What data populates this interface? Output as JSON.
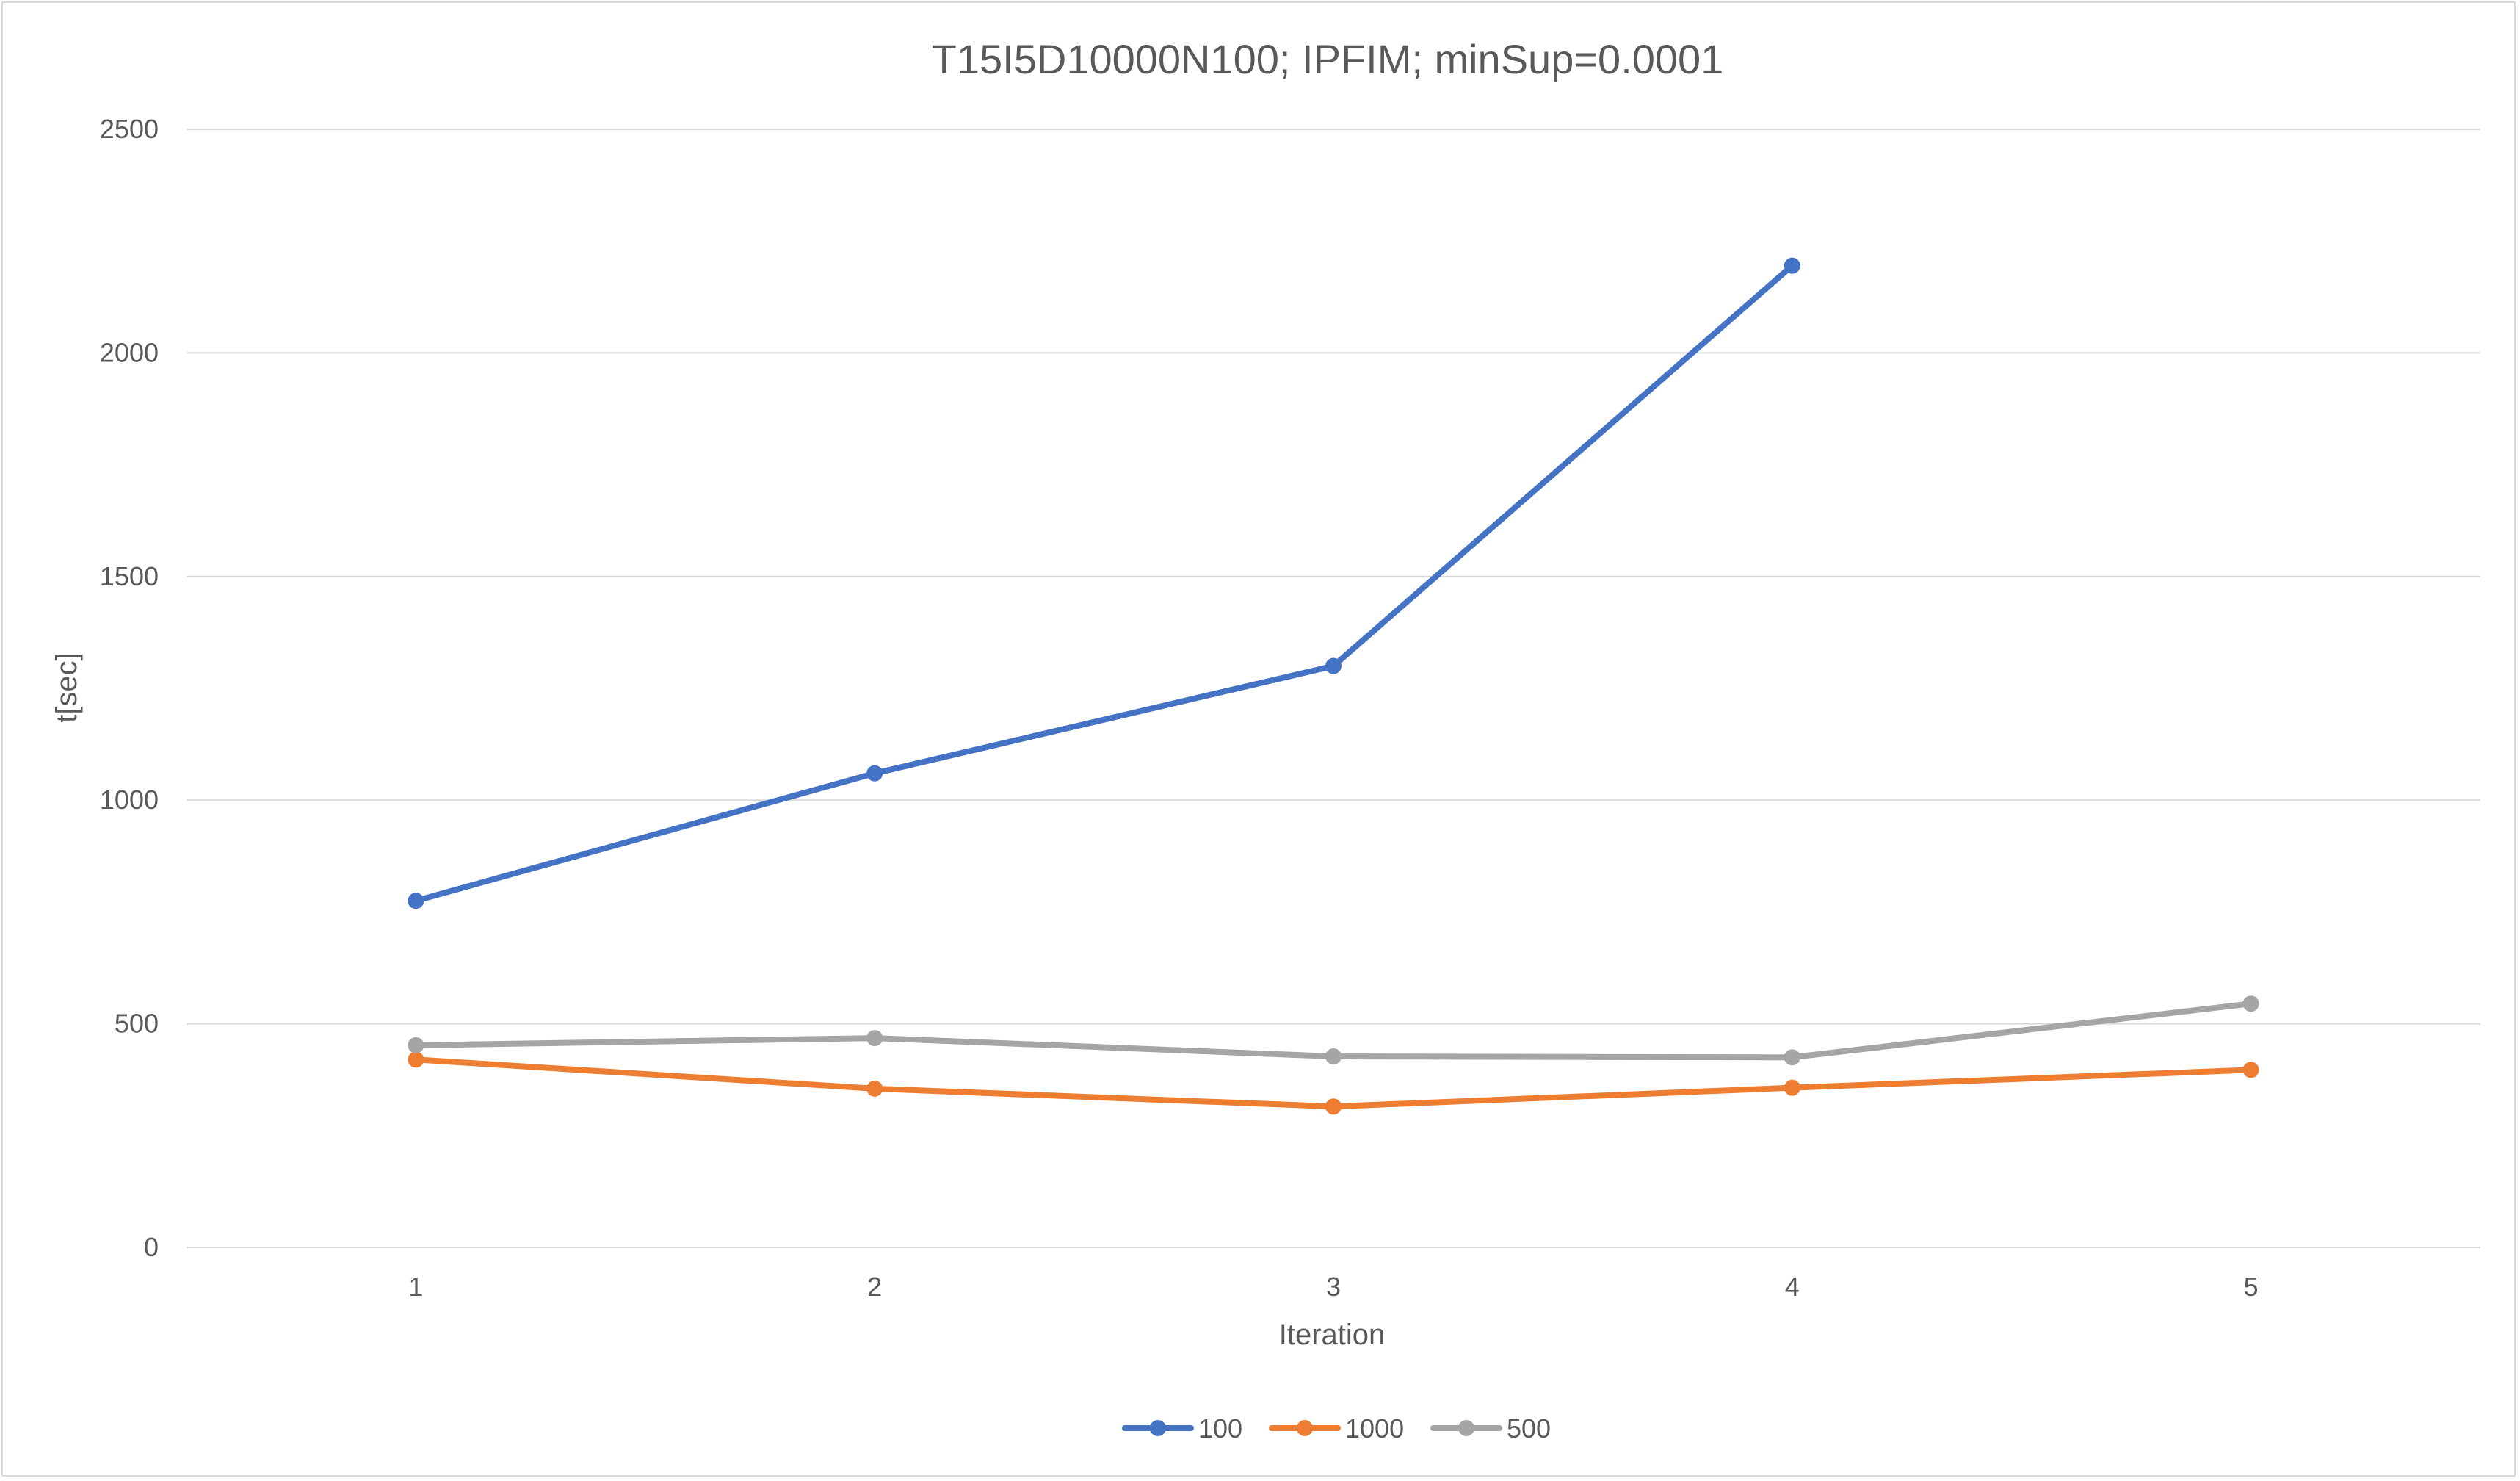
{
  "chart_data": {
    "type": "line",
    "title": "T15I5D10000N100; IPFIM; minSup=0.0001",
    "xlabel": "Iteration",
    "ylabel": "t[sec]",
    "categories": [
      "1",
      "2",
      "3",
      "4",
      "5"
    ],
    "ylim": [
      0,
      2500
    ],
    "yticks": [
      0,
      500,
      1000,
      1500,
      2000,
      2500
    ],
    "grid": true,
    "legend_position": "bottom",
    "series": [
      {
        "name": "100",
        "color": "#4472C4",
        "values": [
          775,
          1060,
          1300,
          2195,
          null
        ]
      },
      {
        "name": "1000",
        "color": "#ED7D31",
        "values": [
          420,
          355,
          315,
          357,
          397
        ]
      },
      {
        "name": "500",
        "color": "#A5A5A5",
        "values": [
          452,
          468,
          427,
          425,
          545
        ]
      }
    ]
  }
}
